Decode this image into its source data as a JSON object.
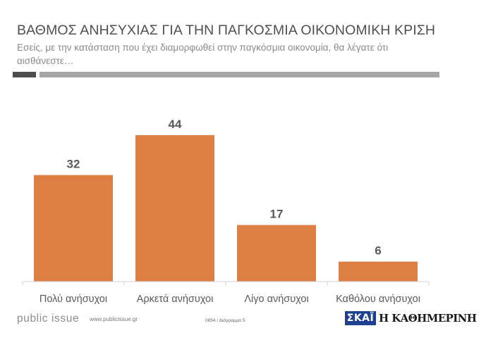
{
  "header": {
    "title": "ΒΑΘΜΟΣ ΑΝΗΣΥΧΙΑΣ ΓΙΑ ΤΗΝ ΠΑΓΚΟΣΜΙΑ ΟΙΚΟΝΟΜΙΚΗ ΚΡΙΣΗ",
    "subtitle": "Εσείς, με την κατάσταση που έχει διαμορφωθεί στην παγκόσμια οικονομία, θα λέγατε ότι αισθάνεστε…"
  },
  "chart_data": {
    "type": "bar",
    "title": "ΒΑΘΜΟΣ ΑΝΗΣΥΧΙΑΣ ΓΙΑ ΤΗΝ ΠΑΓΚΟΣΜΙΑ ΟΙΚΟΝΟΜΙΚΗ ΚΡΙΣΗ",
    "subtitle": "Εσείς, με την κατάσταση που έχει διαμορφωθεί στην παγκόσμια οικονομία, θα λέγατε ότι αισθάνεστε…",
    "categories": [
      "Πολύ ανήσυχοι",
      "Αρκετά ανήσυχοι",
      "Λίγο ανήσυχοι",
      "Καθόλου ανήσυχοι"
    ],
    "values": [
      32,
      44,
      17,
      6
    ],
    "ylim": [
      0,
      55
    ],
    "grid": false,
    "bar_color": "#DB7F45",
    "data_labels": true
  },
  "footer": {
    "brand": "public issue",
    "url": "www.publicissue.gr",
    "ref": "0854 / Διάγραμμα 5",
    "logo_skai": "ΣΚΑΪ",
    "logo_kathimerini": "Η ΚΑΘΗΜΕΡΙΝΗ"
  }
}
